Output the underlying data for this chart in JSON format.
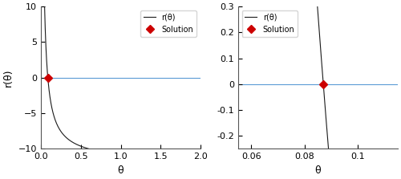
{
  "theta_star": 0.08707,
  "left_xlim": [
    0,
    2
  ],
  "left_ylim": [
    -10,
    10
  ],
  "left_yticks": [
    -10,
    -5,
    0,
    5,
    10
  ],
  "left_xticks": [
    0,
    0.5,
    1,
    1.5,
    2
  ],
  "right_xlim": [
    0.055,
    0.115
  ],
  "right_ylim": [
    -0.25,
    0.3
  ],
  "right_yticks": [
    -0.2,
    -0.1,
    0,
    0.1,
    0.2,
    0.3
  ],
  "right_xticks": [
    0.06,
    0.08,
    0.1
  ],
  "line_color": "#1a1a1a",
  "hline_color": "#5b9bd5",
  "solution_color": "#cc0000",
  "xlabel": "θ",
  "ylabel": "r(θ)",
  "legend_line_label": "r(θ)",
  "legend_point_label": "Solution",
  "fig_width": 5.0,
  "fig_height": 2.23,
  "dpi": 100
}
